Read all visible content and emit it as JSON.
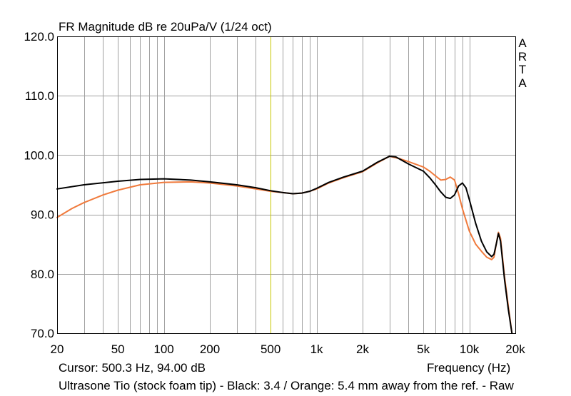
{
  "header": {
    "title": "FR Magnitude dB re 20uPa/V (1/24 oct)"
  },
  "brand": [
    "A",
    "R",
    "T",
    "A"
  ],
  "footer": {
    "cursor": "Cursor: 500.3 Hz, 94.00 dB",
    "xlabel": "Frequency (Hz)",
    "caption": "Ultrasone Tio (stock foam tip) - Black: 3.4 / Orange: 5.4 mm away from the ref. - Raw"
  },
  "colors": {
    "grid": "#a0a0a0",
    "cursor_line": "#c8c800",
    "black_series": "#000000",
    "orange_series": "#f07a3c"
  },
  "chart_data": {
    "type": "line",
    "title": "FR Magnitude dB re 20uPa/V (1/24 oct)",
    "xlabel": "Frequency (Hz)",
    "ylabel": "",
    "x_scale": "log",
    "xlim": [
      20,
      20000
    ],
    "ylim": [
      70,
      120
    ],
    "grid": true,
    "x_ticks": [
      {
        "value": 20,
        "label": "20"
      },
      {
        "value": 50,
        "label": "50"
      },
      {
        "value": 100,
        "label": "100"
      },
      {
        "value": 200,
        "label": "200"
      },
      {
        "value": 500,
        "label": "500"
      },
      {
        "value": 1000,
        "label": "1k"
      },
      {
        "value": 2000,
        "label": "2k"
      },
      {
        "value": 5000,
        "label": "5k"
      },
      {
        "value": 10000,
        "label": "10k"
      },
      {
        "value": 20000,
        "label": "20k"
      }
    ],
    "y_ticks": [
      {
        "value": 70,
        "label": "70.0"
      },
      {
        "value": 80,
        "label": "80.0"
      },
      {
        "value": 90,
        "label": "90.0"
      },
      {
        "value": 100,
        "label": "100.0"
      },
      {
        "value": 110,
        "label": "110.0"
      },
      {
        "value": 120,
        "label": "120.0"
      }
    ],
    "cursor": {
      "x": 500.3,
      "y": 94.0
    },
    "series": [
      {
        "color": "#000000",
        "points": [
          [
            20,
            94.3
          ],
          [
            30,
            95.0
          ],
          [
            50,
            95.6
          ],
          [
            70,
            95.9
          ],
          [
            100,
            96.0
          ],
          [
            150,
            95.8
          ],
          [
            200,
            95.5
          ],
          [
            300,
            95.0
          ],
          [
            400,
            94.5
          ],
          [
            500,
            94.0
          ],
          [
            600,
            93.7
          ],
          [
            700,
            93.5
          ],
          [
            800,
            93.6
          ],
          [
            900,
            93.9
          ],
          [
            1000,
            94.4
          ],
          [
            1200,
            95.4
          ],
          [
            1500,
            96.3
          ],
          [
            2000,
            97.3
          ],
          [
            2500,
            98.8
          ],
          [
            3000,
            99.8
          ],
          [
            3300,
            99.7
          ],
          [
            4000,
            98.5
          ],
          [
            5000,
            97.3
          ],
          [
            5500,
            96.2
          ],
          [
            6000,
            95.0
          ],
          [
            6500,
            93.8
          ],
          [
            7000,
            92.9
          ],
          [
            7500,
            92.7
          ],
          [
            8000,
            93.3
          ],
          [
            8500,
            94.8
          ],
          [
            9000,
            95.3
          ],
          [
            9500,
            94.5
          ],
          [
            10000,
            92.5
          ],
          [
            11000,
            88.5
          ],
          [
            12000,
            85.5
          ],
          [
            13000,
            83.7
          ],
          [
            14000,
            82.9
          ],
          [
            14500,
            83.3
          ],
          [
            15000,
            85.0
          ],
          [
            15500,
            86.8
          ],
          [
            16000,
            85.5
          ],
          [
            17000,
            79.0
          ],
          [
            18000,
            74.0
          ],
          [
            19000,
            70.0
          ]
        ]
      },
      {
        "color": "#f07a3c",
        "points": [
          [
            20,
            89.5
          ],
          [
            25,
            91.0
          ],
          [
            30,
            92.0
          ],
          [
            40,
            93.3
          ],
          [
            50,
            94.1
          ],
          [
            70,
            95.0
          ],
          [
            100,
            95.4
          ],
          [
            150,
            95.5
          ],
          [
            200,
            95.3
          ],
          [
            300,
            94.8
          ],
          [
            400,
            94.3
          ],
          [
            500,
            93.9
          ],
          [
            600,
            93.7
          ],
          [
            700,
            93.5
          ],
          [
            800,
            93.6
          ],
          [
            900,
            93.9
          ],
          [
            1000,
            94.3
          ],
          [
            1200,
            95.3
          ],
          [
            1500,
            96.2
          ],
          [
            2000,
            97.2
          ],
          [
            2500,
            98.7
          ],
          [
            3000,
            99.8
          ],
          [
            3500,
            99.4
          ],
          [
            4000,
            98.9
          ],
          [
            5000,
            98.0
          ],
          [
            5500,
            97.3
          ],
          [
            6000,
            96.5
          ],
          [
            6500,
            95.8
          ],
          [
            7000,
            95.9
          ],
          [
            7500,
            96.3
          ],
          [
            8000,
            95.8
          ],
          [
            8500,
            93.5
          ],
          [
            9000,
            91.0
          ],
          [
            10000,
            87.2
          ],
          [
            11000,
            85.0
          ],
          [
            12000,
            83.8
          ],
          [
            13000,
            82.8
          ],
          [
            14000,
            82.4
          ],
          [
            14500,
            82.8
          ],
          [
            15000,
            85.0
          ],
          [
            15500,
            87.0
          ],
          [
            16000,
            86.0
          ],
          [
            17000,
            79.5
          ],
          [
            18000,
            74.5
          ],
          [
            19000,
            70.0
          ]
        ]
      }
    ]
  }
}
